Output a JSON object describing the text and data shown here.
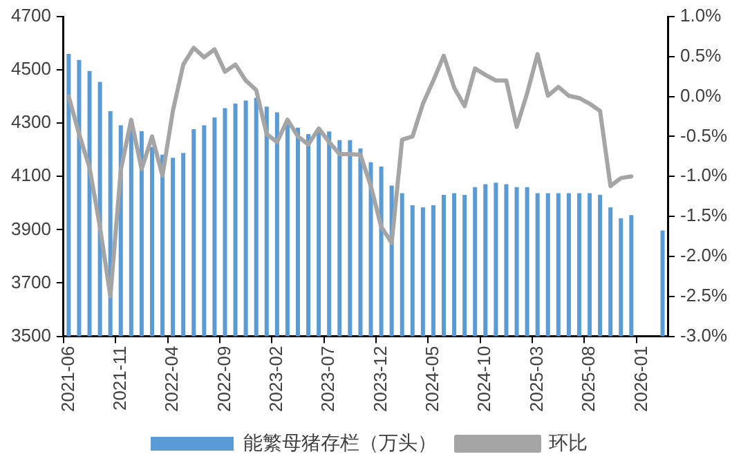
{
  "chart_data": {
    "type": "bar",
    "categories": [
      "2021-06",
      null,
      null,
      null,
      null,
      "2021-11",
      null,
      null,
      null,
      null,
      "2022-04",
      null,
      null,
      null,
      null,
      "2022-09",
      null,
      null,
      null,
      null,
      "2023-02",
      null,
      null,
      null,
      null,
      "2023-07",
      null,
      null,
      null,
      null,
      "2023-12",
      null,
      null,
      null,
      null,
      "2024-05",
      null,
      null,
      null,
      null,
      "2024-10",
      null,
      null,
      null,
      null,
      "2025-03",
      null,
      null,
      null,
      null,
      "2025-08",
      null,
      null,
      null,
      null,
      "2026-01",
      null,
      null
    ],
    "series": [
      {
        "name": "能繁母猪存栏（万头）",
        "color": "#5b9bd5",
        "values": [
          4560,
          4537,
          4496,
          4455,
          4345,
          4292,
          4280,
          4270,
          4211,
          4182,
          4170,
          4188,
          4277,
          4292,
          4321,
          4356,
          4374,
          4385,
          4395,
          4362,
          4341,
          4308,
          4283,
          4259,
          4279,
          4269,
          4236,
          4236,
          4205,
          4153,
          4137,
          4066,
          4037,
          3992,
          3984,
          3992,
          4031,
          4037,
          4031,
          4060,
          4071,
          4077,
          4071,
          4060,
          4060,
          4037,
          4037,
          4037,
          4037,
          4037,
          4037,
          4031,
          3984,
          3943,
          3955,
          null,
          null,
          3897
        ]
      },
      {
        "name": "环比",
        "type": "line",
        "axis": "y2",
        "color": "#a5a5a5",
        "values": [
          0.0,
          -0.47,
          -0.89,
          -1.63,
          -2.5,
          -0.92,
          -0.29,
          -0.91,
          -0.5,
          -0.99,
          -0.18,
          0.4,
          0.61,
          0.49,
          0.59,
          0.31,
          0.4,
          0.2,
          0.08,
          -0.47,
          -0.57,
          -0.29,
          -0.5,
          -0.6,
          -0.4,
          -0.57,
          -0.72,
          -0.72,
          -0.73,
          -1.12,
          -1.63,
          -1.83,
          -0.54,
          -0.5,
          -0.09,
          0.2,
          0.51,
          0.11,
          -0.12,
          0.35,
          0.27,
          0.2,
          0.2,
          -0.38,
          0.04,
          0.53,
          0.01,
          0.12,
          0.01,
          -0.02,
          -0.09,
          -0.18,
          -1.12,
          -1.02,
          -1.0,
          null,
          null,
          null
        ]
      }
    ],
    "ylim": [
      3500,
      4700
    ],
    "yticks": [
      3500,
      3700,
      3900,
      4100,
      4300,
      4500,
      4700
    ],
    "y2lim": [
      -3.0,
      1.0
    ],
    "y2ticks": [
      {
        "value": -3.0,
        "label": "-3.0%"
      },
      {
        "value": -2.5,
        "label": "-2.5%"
      },
      {
        "value": -2.0,
        "label": "-2.0%"
      },
      {
        "value": -1.5,
        "label": "-1.5%"
      },
      {
        "value": -1.0,
        "label": "-1.0%"
      },
      {
        "value": -0.5,
        "label": "-0.5%"
      },
      {
        "value": 0.0,
        "label": "0.0%"
      },
      {
        "value": 0.5,
        "label": "0.5%"
      },
      {
        "value": 1.0,
        "label": "1.0%"
      }
    ],
    "legend": "bottom",
    "marker": "none",
    "line_style": "solid"
  }
}
